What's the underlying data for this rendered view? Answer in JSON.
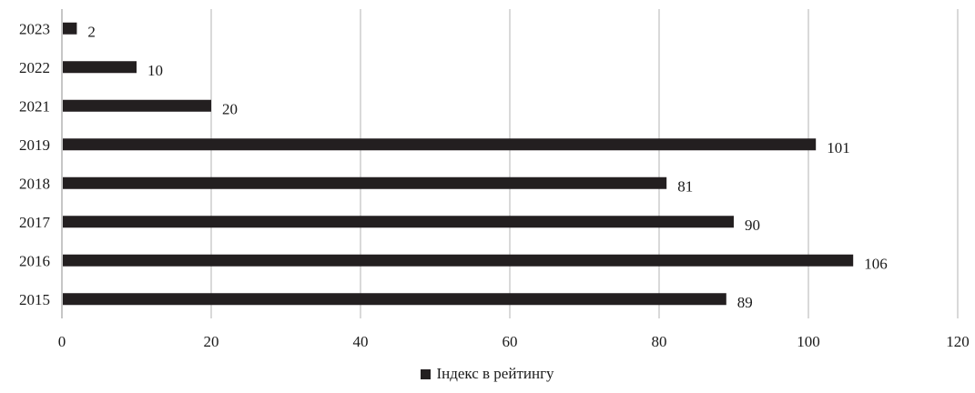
{
  "chart_data": {
    "type": "bar",
    "orientation": "horizontal",
    "categories": [
      "2015",
      "2016",
      "2017",
      "2018",
      "2019",
      "2021",
      "2022",
      "2023"
    ],
    "series": [
      {
        "name": "Індекс в рейтингу",
        "values": [
          89,
          106,
          90,
          81,
          101,
          20,
          10,
          2
        ]
      }
    ],
    "xlim": [
      0,
      120
    ],
    "xticks": [
      "0",
      "20",
      "40",
      "60",
      "80",
      "100",
      "120"
    ],
    "grid": "vertical",
    "legend_position": "bottom",
    "bar_color": "#231f20",
    "data_labels": [
      "89",
      "106",
      "90",
      "81",
      "101",
      "20",
      "10",
      "2"
    ]
  }
}
